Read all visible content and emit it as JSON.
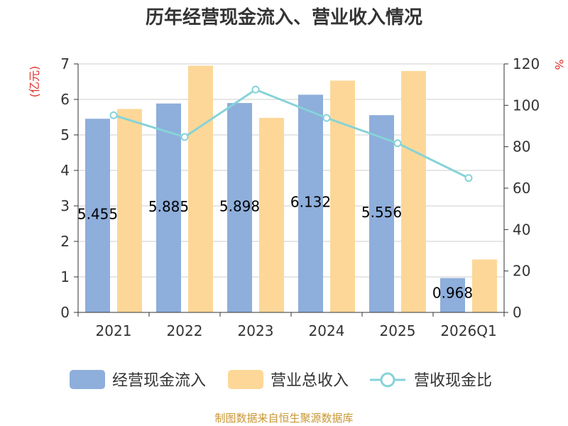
{
  "title": "历年经营现金流入、营业收入情况",
  "source": "制图数据来自恒生聚源数据库",
  "chart_data": {
    "type": "bar",
    "title": "历年经营现金流入、营业收入情况",
    "categories": [
      "2021",
      "2022",
      "2023",
      "2024",
      "2025",
      "2026Q1"
    ],
    "y_left": {
      "label": "(亿元)",
      "lim": [
        0,
        7
      ],
      "ticks": [
        "0",
        "1",
        "2",
        "3",
        "4",
        "5",
        "6",
        "7"
      ]
    },
    "y_right": {
      "label": "%",
      "lim": [
        0,
        120
      ],
      "ticks": [
        "0",
        "20",
        "40",
        "60",
        "80",
        "100",
        "120"
      ]
    },
    "series": [
      {
        "name": "经营现金流入",
        "kind": "bar",
        "axis": "left",
        "color": "#8eaedb",
        "values": [
          5.455,
          5.885,
          5.898,
          6.132,
          5.556,
          0.968
        ],
        "labels": [
          "5.455",
          "5.885",
          "5.898",
          "6.132",
          "5.556",
          "0.968"
        ]
      },
      {
        "name": "营业总收入",
        "kind": "bar",
        "axis": "left",
        "color": "#fdd798",
        "values": [
          5.73,
          6.95,
          5.48,
          6.53,
          6.8,
          1.49
        ]
      },
      {
        "name": "营收现金比",
        "kind": "line",
        "axis": "right",
        "color": "#86d3d8",
        "values": [
          95.2,
          84.7,
          107.6,
          93.9,
          81.7,
          64.9
        ]
      }
    ],
    "grid": true,
    "legend": "bottom"
  }
}
